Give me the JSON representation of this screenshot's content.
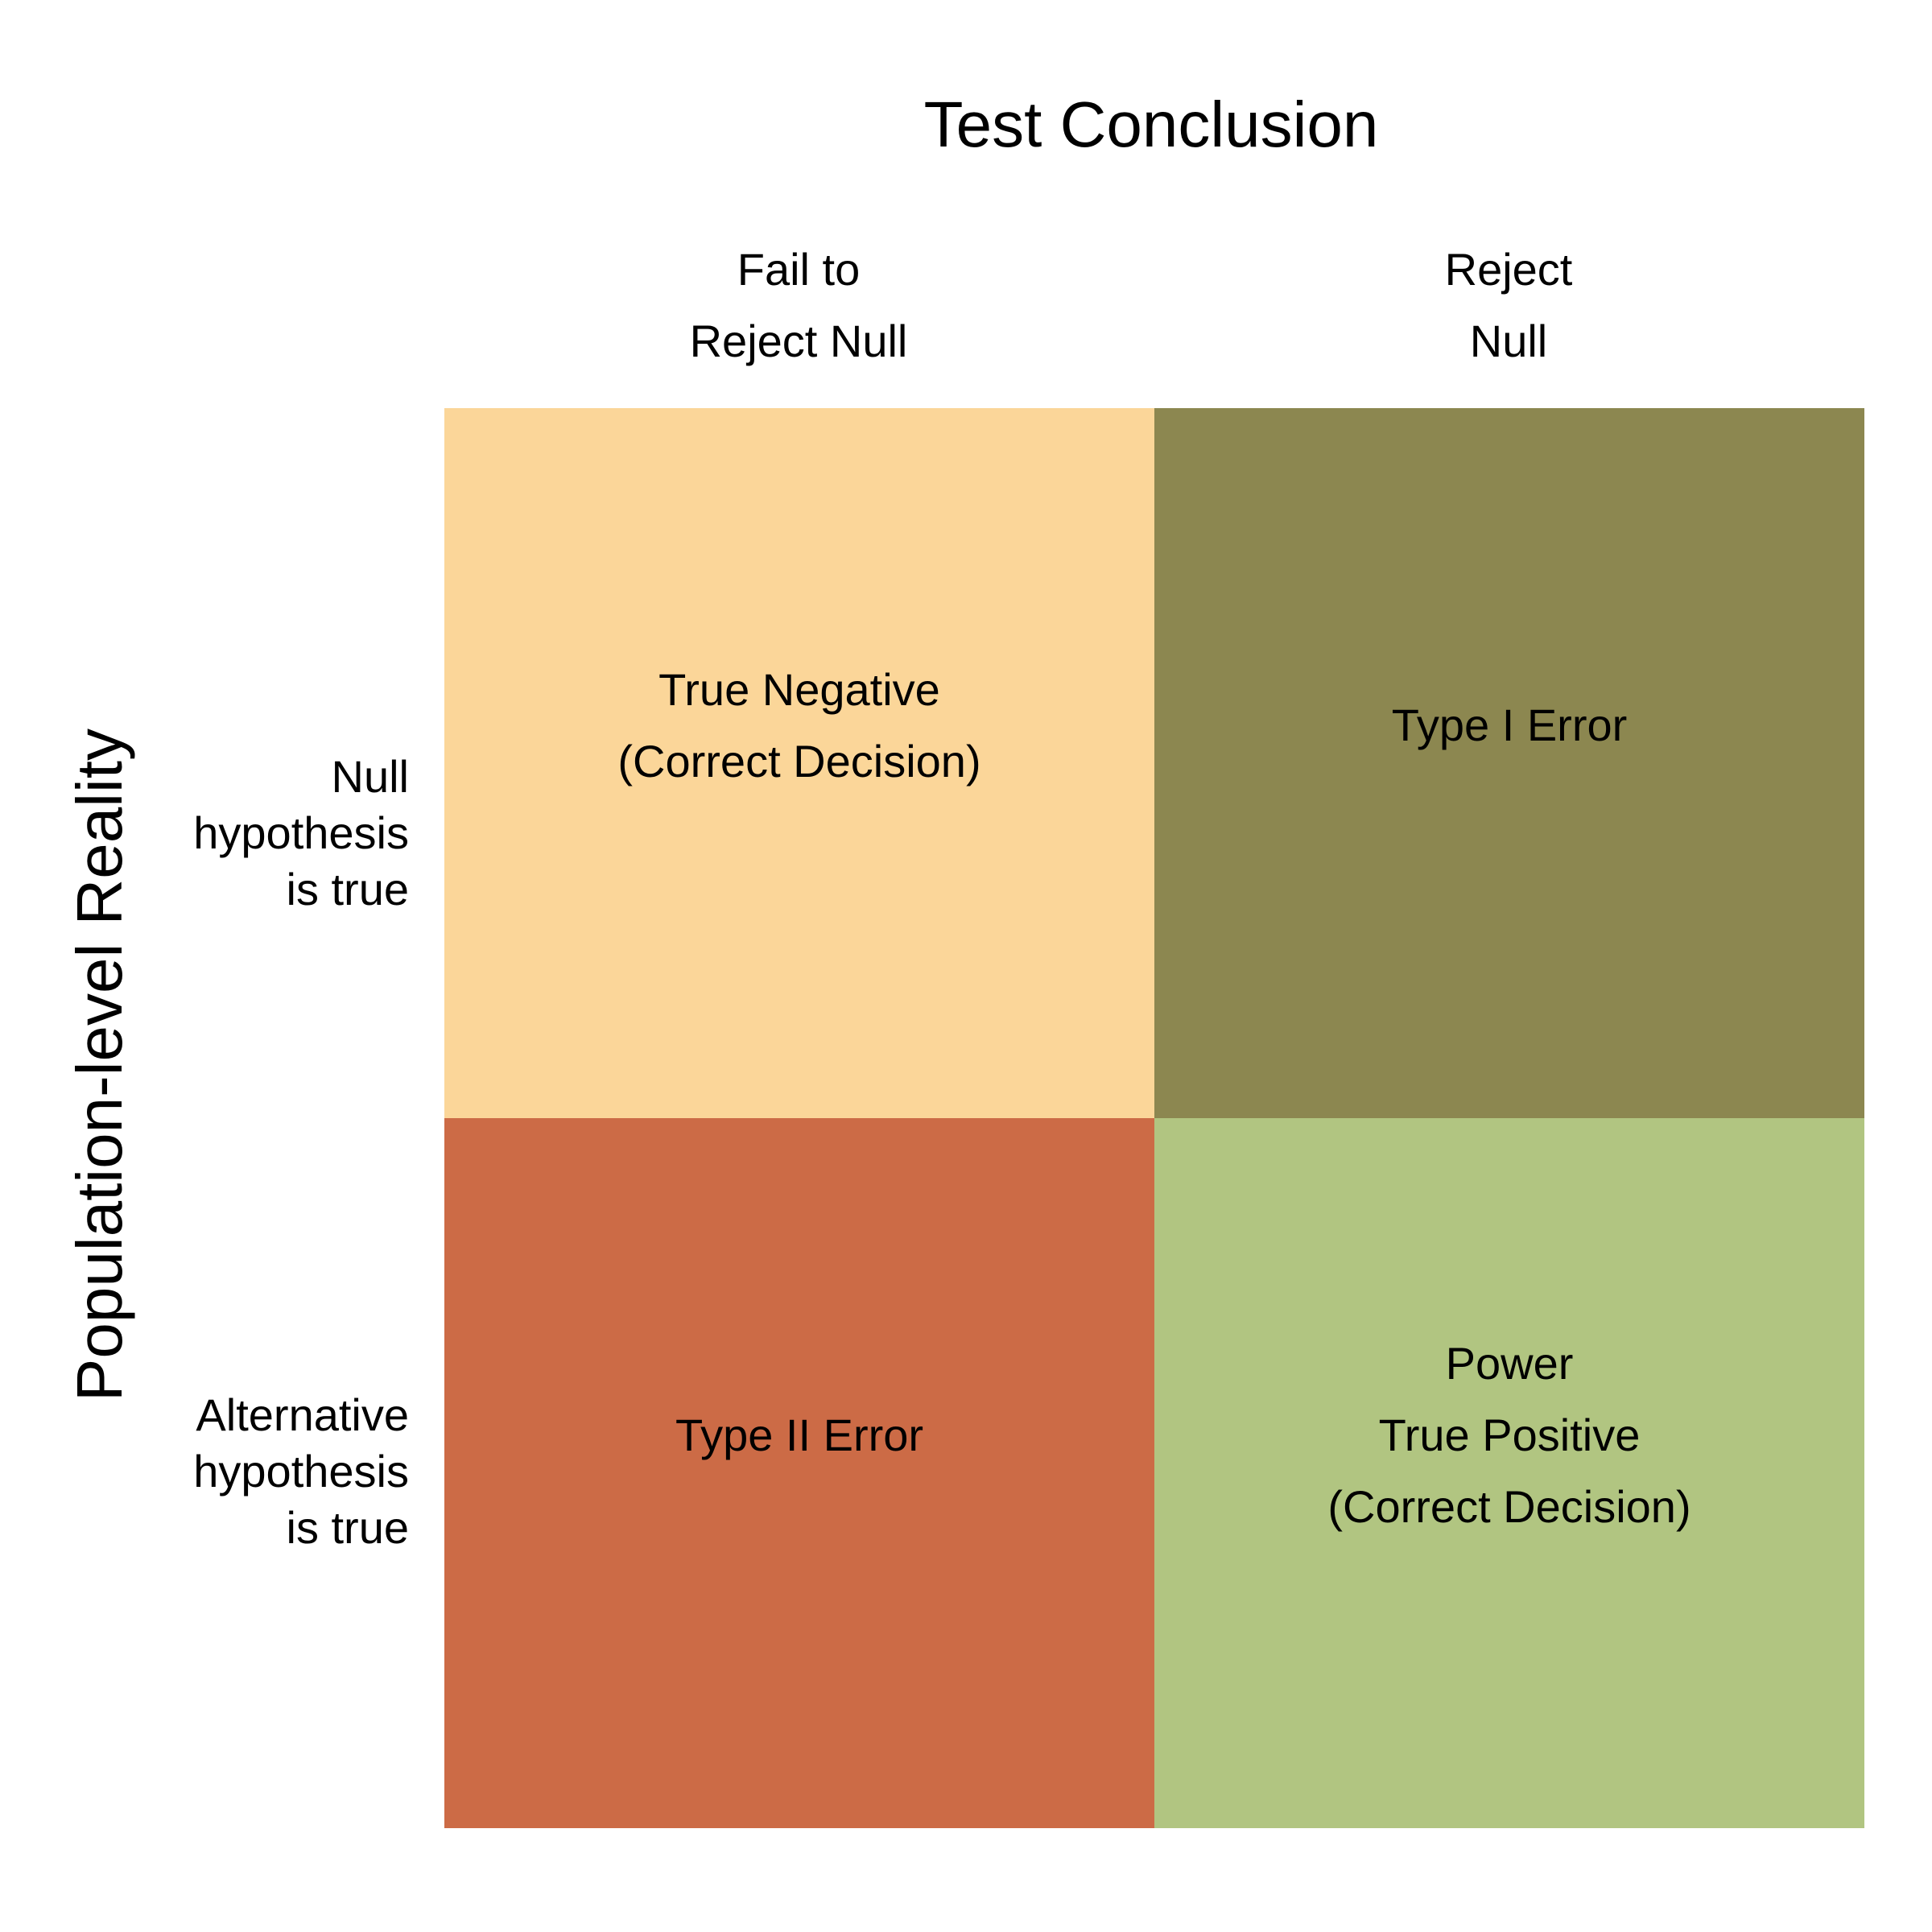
{
  "title": "Test Conclusion",
  "ylabel": "Population-level Reality",
  "columns": [
    {
      "line1": "Fail to",
      "line2": "Reject Null"
    },
    {
      "line1": "Reject",
      "line2": "Null"
    }
  ],
  "rows": [
    {
      "line1": "Null",
      "line2": "hypothesis",
      "line3": "is true"
    },
    {
      "line1": "Alternative",
      "line2": "hypothesis",
      "line3": "is true"
    }
  ],
  "cells": {
    "true_negative": {
      "line1": "True Negative",
      "line2": "(Correct Decision)",
      "color": "#FBD699"
    },
    "type_one_error": {
      "line1": "Type I Error",
      "color": "#8C8750"
    },
    "type_two_error": {
      "line1": "Type II Error",
      "color": "#CC6B46"
    },
    "power": {
      "line1": "Power",
      "line2": "True Positive",
      "line3": "(Correct Decision)",
      "color": "#B1C581"
    }
  }
}
